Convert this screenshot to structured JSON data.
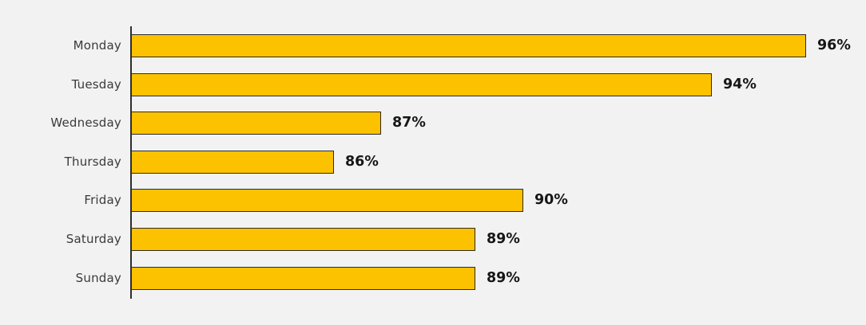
{
  "chart_data": {
    "type": "bar",
    "orientation": "horizontal",
    "title": "",
    "xlabel": "",
    "ylabel": "",
    "categories": [
      "Monday",
      "Tuesday",
      "Wednesday",
      "Thursday",
      "Friday",
      "Saturday",
      "Sunday"
    ],
    "values": [
      96,
      94,
      87,
      86,
      90,
      89,
      89
    ],
    "value_labels": [
      "96%",
      "94%",
      "87%",
      "86%",
      "90%",
      "89%",
      "89%"
    ],
    "unit": "%",
    "xlim": [
      81.7,
      97.5
    ],
    "grid": false,
    "legend": null,
    "colors": {
      "background": "#f2f2f2",
      "bar_fill": "#FCC200",
      "bar_border": "#2E2B23",
      "axis_line": "#2E2E2E",
      "value_label": "#161616",
      "category_label": "#3A3A3A"
    }
  }
}
